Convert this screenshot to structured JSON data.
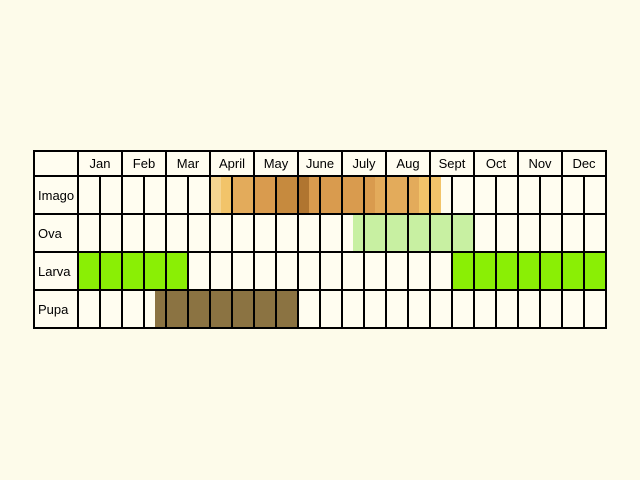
{
  "chart_data": {
    "type": "table",
    "months": [
      "Jan",
      "Feb",
      "Mar",
      "April",
      "May",
      "June",
      "July",
      "Aug",
      "Sept",
      "Oct",
      "Nov",
      "Dec"
    ],
    "cells_per_month": 2,
    "stages": [
      {
        "name": "Imago",
        "color": "#f2c46a",
        "bands": [
          {
            "start": 6.0,
            "end": 16.5,
            "color": "#f5d591"
          },
          {
            "start": 6.5,
            "end": 16.5,
            "color": "#f2c46a"
          },
          {
            "start": 7.0,
            "end": 15.5,
            "color": "#e3ab5b"
          },
          {
            "start": 8.0,
            "end": 13.5,
            "color": "#d99b4e"
          },
          {
            "start": 9.0,
            "end": 10.0,
            "color": "#c68a3e"
          },
          {
            "start": 10.0,
            "end": 10.5,
            "color": "#b07530"
          }
        ]
      },
      {
        "name": "Ova",
        "color": "#c8f0a2",
        "bands": [
          {
            "start": 12.5,
            "end": 18.0,
            "color": "#c8f0a2"
          }
        ]
      },
      {
        "name": "Larva",
        "color": "#8aef05",
        "bands": [
          {
            "start": 0.0,
            "end": 5.0,
            "color": "#8aef05"
          },
          {
            "start": 17.0,
            "end": 24.0,
            "color": "#8aef05"
          }
        ]
      },
      {
        "name": "Pupa",
        "color": "#8b7342",
        "bands": [
          {
            "start": 3.5,
            "end": 10.0,
            "color": "#8b7342"
          }
        ]
      }
    ]
  }
}
